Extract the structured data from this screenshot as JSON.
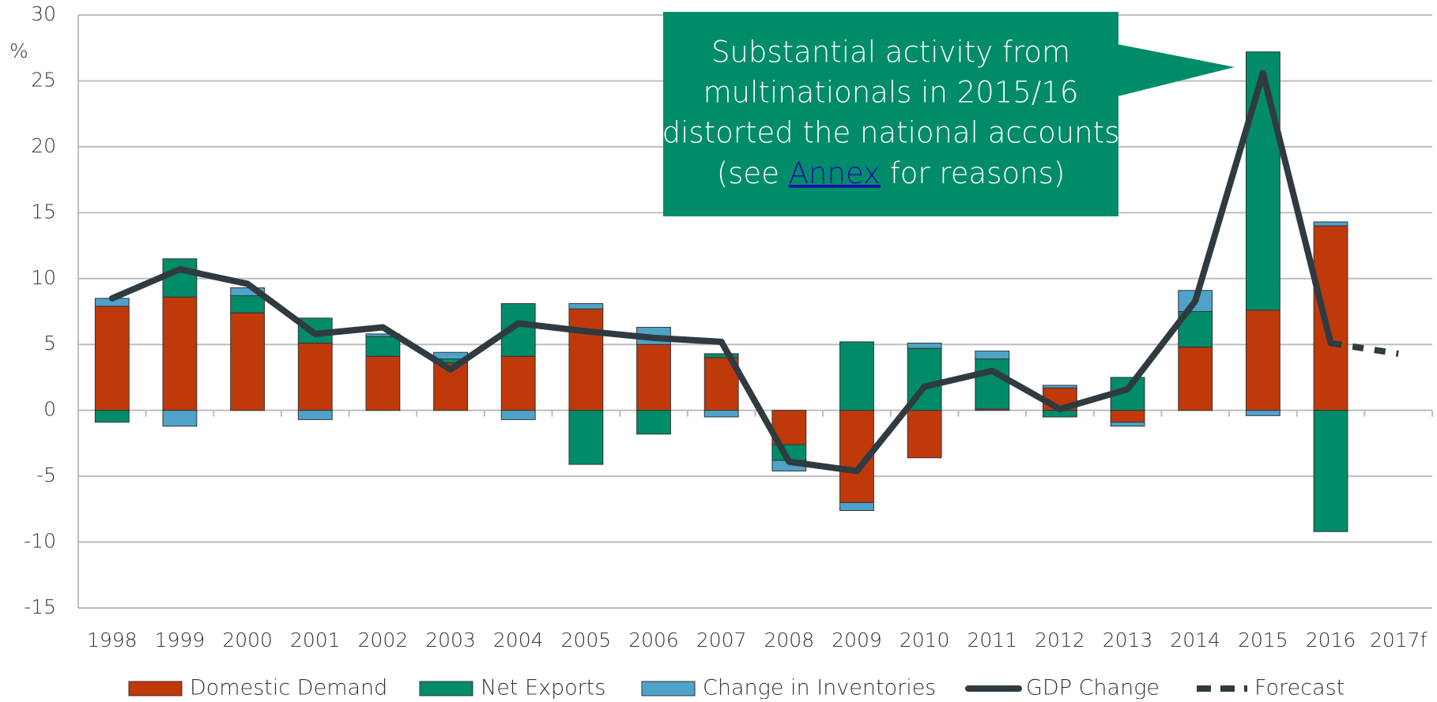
{
  "chart_data": {
    "type": "stacked-bar-line",
    "y_label": "%",
    "categories": [
      "1998",
      "1999",
      "2000",
      "2001",
      "2002",
      "2003",
      "2004",
      "2005",
      "2006",
      "2007",
      "2008",
      "2009",
      "2010",
      "2011",
      "2012",
      "2013",
      "2014",
      "2015",
      "2016",
      "2017f"
    ],
    "series": [
      {
        "name": "Domestic Demand",
        "color": "#c0390b",
        "kind": "bar",
        "values": [
          7.9,
          8.6,
          7.4,
          5.1,
          4.1,
          3.6,
          4.1,
          7.7,
          5.0,
          4.0,
          -2.6,
          -7.0,
          -3.6,
          0.1,
          1.7,
          -0.9,
          4.8,
          7.6,
          14.0,
          null
        ]
      },
      {
        "name": "Net Exports",
        "color": "#008c69",
        "kind": "bar",
        "values": [
          -0.9,
          2.9,
          1.3,
          1.9,
          1.5,
          0.3,
          4.0,
          -4.1,
          -1.8,
          0.3,
          -1.2,
          5.2,
          4.7,
          3.8,
          -0.5,
          2.5,
          2.7,
          19.6,
          -9.2,
          null
        ]
      },
      {
        "name": "Change in Inventories",
        "color": "#4fa3c9",
        "kind": "bar",
        "values": [
          0.6,
          -1.2,
          0.6,
          -0.7,
          0.2,
          0.5,
          -0.7,
          0.4,
          1.3,
          -0.5,
          -0.8,
          -0.6,
          0.4,
          0.6,
          0.2,
          -0.3,
          1.6,
          -0.4,
          0.3,
          null
        ]
      },
      {
        "name": "GDP Change",
        "color": "#2f3b40",
        "kind": "line",
        "values": [
          8.5,
          10.7,
          9.6,
          5.8,
          6.3,
          3.1,
          6.6,
          6.0,
          5.5,
          5.2,
          -3.9,
          -4.6,
          1.8,
          3.0,
          0.1,
          1.6,
          8.3,
          25.6,
          5.1,
          null
        ]
      },
      {
        "name": "Forecast",
        "color": "#2f3b40",
        "kind": "dashed",
        "values": [
          null,
          null,
          null,
          null,
          null,
          null,
          null,
          null,
          null,
          null,
          null,
          null,
          null,
          null,
          null,
          null,
          null,
          null,
          5.1,
          4.3
        ]
      }
    ],
    "ylim": [
      -15,
      30
    ],
    "yticks": [
      30,
      25,
      20,
      15,
      10,
      5,
      0,
      -5,
      -10,
      -15
    ],
    "grid": true,
    "annotation": [
      "Substantial activity from",
      "multinationals in 2015/16",
      "distorted the national accounts"
    ],
    "annotation_end": {
      "before": "(see ",
      "link": "Annex",
      "after": " for reasons)"
    },
    "annotation_color": "#008c69"
  }
}
